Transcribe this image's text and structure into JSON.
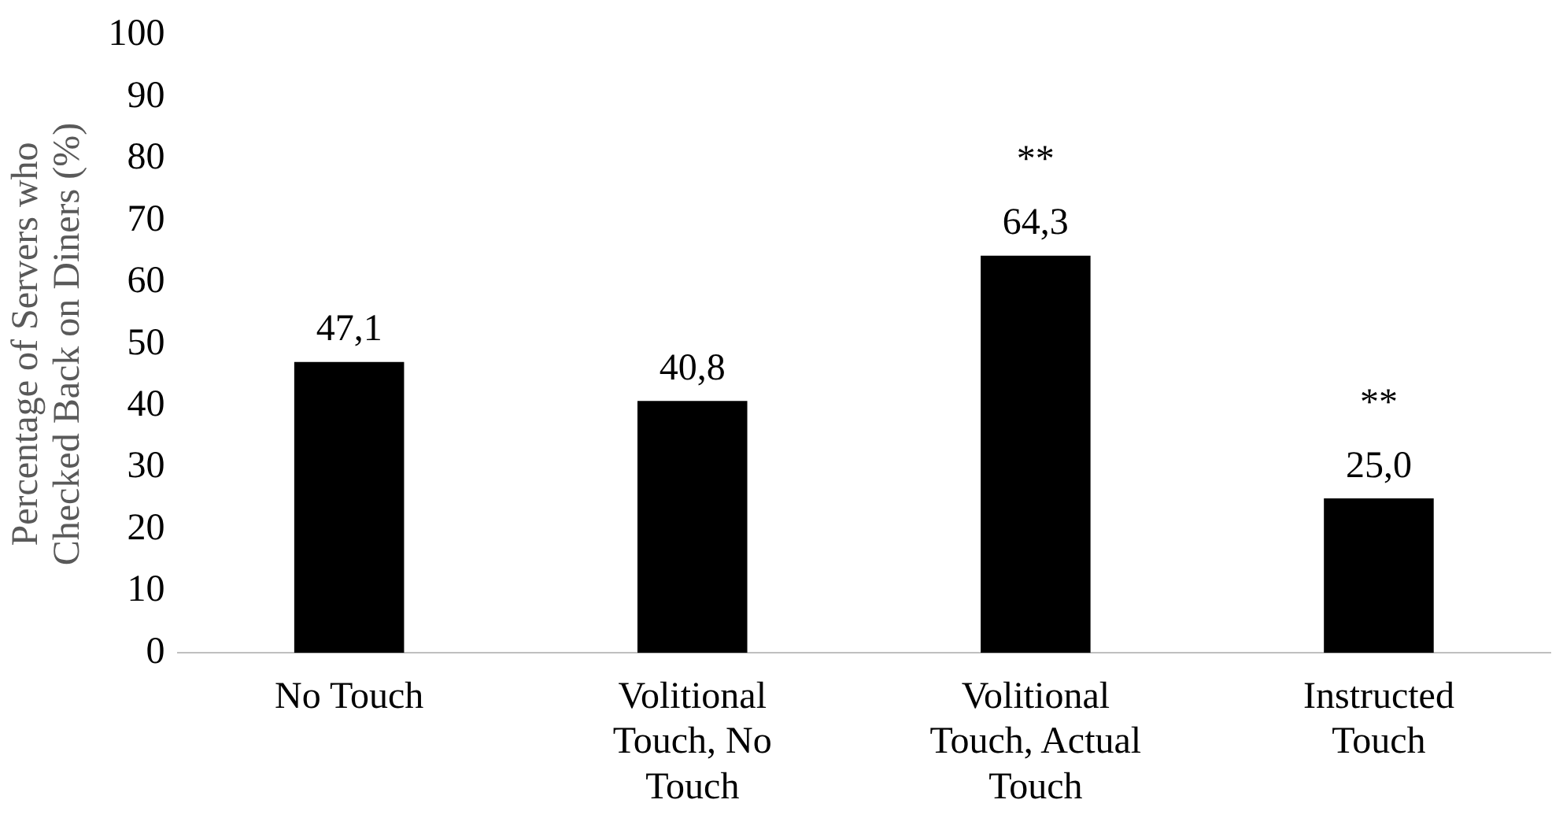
{
  "chart_data": {
    "type": "bar",
    "ylabel": "Percentage of Servers who Checked Back on Diners (%)",
    "categories": [
      "No Touch",
      "Volitional Touch, No Touch",
      "Volitional Touch, Actual Touch",
      "Instructed Touch"
    ],
    "values": [
      47.1,
      40.8,
      64.3,
      25.0
    ],
    "color": "#000000",
    "value_labels": [
      "47,1",
      "40,8",
      "64,3",
      "25,0"
    ],
    "ylim": [
      0,
      100
    ],
    "yticks": [
      0,
      10,
      20,
      30,
      40,
      50,
      60,
      70,
      80,
      90,
      100
    ],
    "grid": false,
    "annotations": [
      {
        "text": "**",
        "x": "Volitional Touch, Actual Touch",
        "y": 64.3
      },
      {
        "text": "**",
        "x": "Instructed Touch",
        "y": 25.0
      }
    ]
  }
}
